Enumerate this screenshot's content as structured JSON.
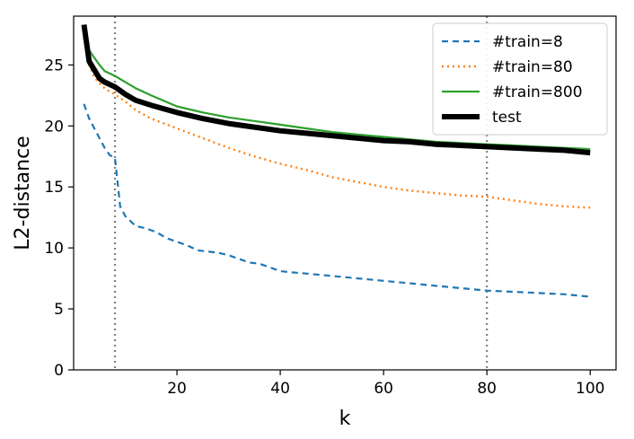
{
  "chart_data": {
    "type": "line",
    "title": "",
    "xlabel": "k",
    "ylabel": "L2-distance",
    "xlim": [
      0,
      105
    ],
    "ylim": [
      0,
      29
    ],
    "xticks": [
      20,
      40,
      60,
      80,
      100
    ],
    "yticks": [
      0,
      5,
      10,
      15,
      20,
      25
    ],
    "grid": false,
    "legend_position": "top-right",
    "vlines": [
      8,
      80
    ],
    "colors": {
      "train8": "#1f77b4",
      "train80": "#ff7f0e",
      "train800": "#2ca02c",
      "test": "#000000",
      "vline": "#808080"
    },
    "series": [
      {
        "name": "#train=8",
        "style": "dashed",
        "x": [
          2,
          3,
          4,
          5,
          6,
          7,
          8,
          9,
          10,
          12,
          14,
          16,
          18,
          20,
          22,
          24,
          26,
          28,
          30,
          32,
          34,
          36,
          38,
          40,
          42,
          45,
          50,
          55,
          60,
          65,
          70,
          75,
          80,
          85,
          90,
          95,
          100
        ],
        "values": [
          21.8,
          20.6,
          19.8,
          19.0,
          18.2,
          17.6,
          17.4,
          13.4,
          12.6,
          11.8,
          11.6,
          11.3,
          10.8,
          10.5,
          10.2,
          9.8,
          9.7,
          9.6,
          9.4,
          9.1,
          8.8,
          8.7,
          8.4,
          8.1,
          8.0,
          7.9,
          7.7,
          7.5,
          7.3,
          7.1,
          6.9,
          6.7,
          6.5,
          6.4,
          6.3,
          6.2,
          6.0
        ]
      },
      {
        "name": "#train=80",
        "style": "dotted",
        "x": [
          2,
          3,
          4,
          5,
          6,
          7,
          8,
          10,
          12,
          15,
          20,
          25,
          30,
          35,
          40,
          45,
          50,
          55,
          60,
          65,
          70,
          75,
          80,
          85,
          90,
          95,
          100
        ],
        "values": [
          27.2,
          25.0,
          24.0,
          23.5,
          23.1,
          22.8,
          22.6,
          22.0,
          21.3,
          20.6,
          19.8,
          19.0,
          18.2,
          17.5,
          16.9,
          16.4,
          15.8,
          15.4,
          15.0,
          14.7,
          14.5,
          14.3,
          14.2,
          13.9,
          13.6,
          13.4,
          13.3
        ]
      },
      {
        "name": "#train=800",
        "style": "solid",
        "x": [
          2,
          3,
          4,
          5,
          6,
          7,
          8,
          10,
          12,
          15,
          20,
          25,
          30,
          35,
          40,
          45,
          50,
          55,
          60,
          65,
          70,
          75,
          80,
          85,
          90,
          95,
          100
        ],
        "values": [
          28.0,
          26.2,
          25.6,
          25.0,
          24.5,
          24.3,
          24.1,
          23.6,
          23.1,
          22.5,
          21.6,
          21.1,
          20.7,
          20.4,
          20.1,
          19.8,
          19.5,
          19.3,
          19.1,
          18.9,
          18.7,
          18.6,
          18.5,
          18.4,
          18.3,
          18.2,
          18.1
        ]
      },
      {
        "name": "test",
        "style": "thick",
        "x": [
          2,
          3,
          4,
          5,
          6,
          7,
          8,
          10,
          12,
          15,
          20,
          25,
          30,
          35,
          40,
          45,
          50,
          55,
          60,
          65,
          70,
          75,
          80,
          85,
          90,
          95,
          100
        ],
        "values": [
          28.3,
          25.3,
          24.6,
          23.9,
          23.6,
          23.4,
          23.2,
          22.6,
          22.1,
          21.7,
          21.1,
          20.6,
          20.2,
          19.9,
          19.6,
          19.4,
          19.2,
          19.0,
          18.8,
          18.7,
          18.5,
          18.4,
          18.3,
          18.2,
          18.1,
          18.0,
          17.8
        ]
      }
    ]
  }
}
